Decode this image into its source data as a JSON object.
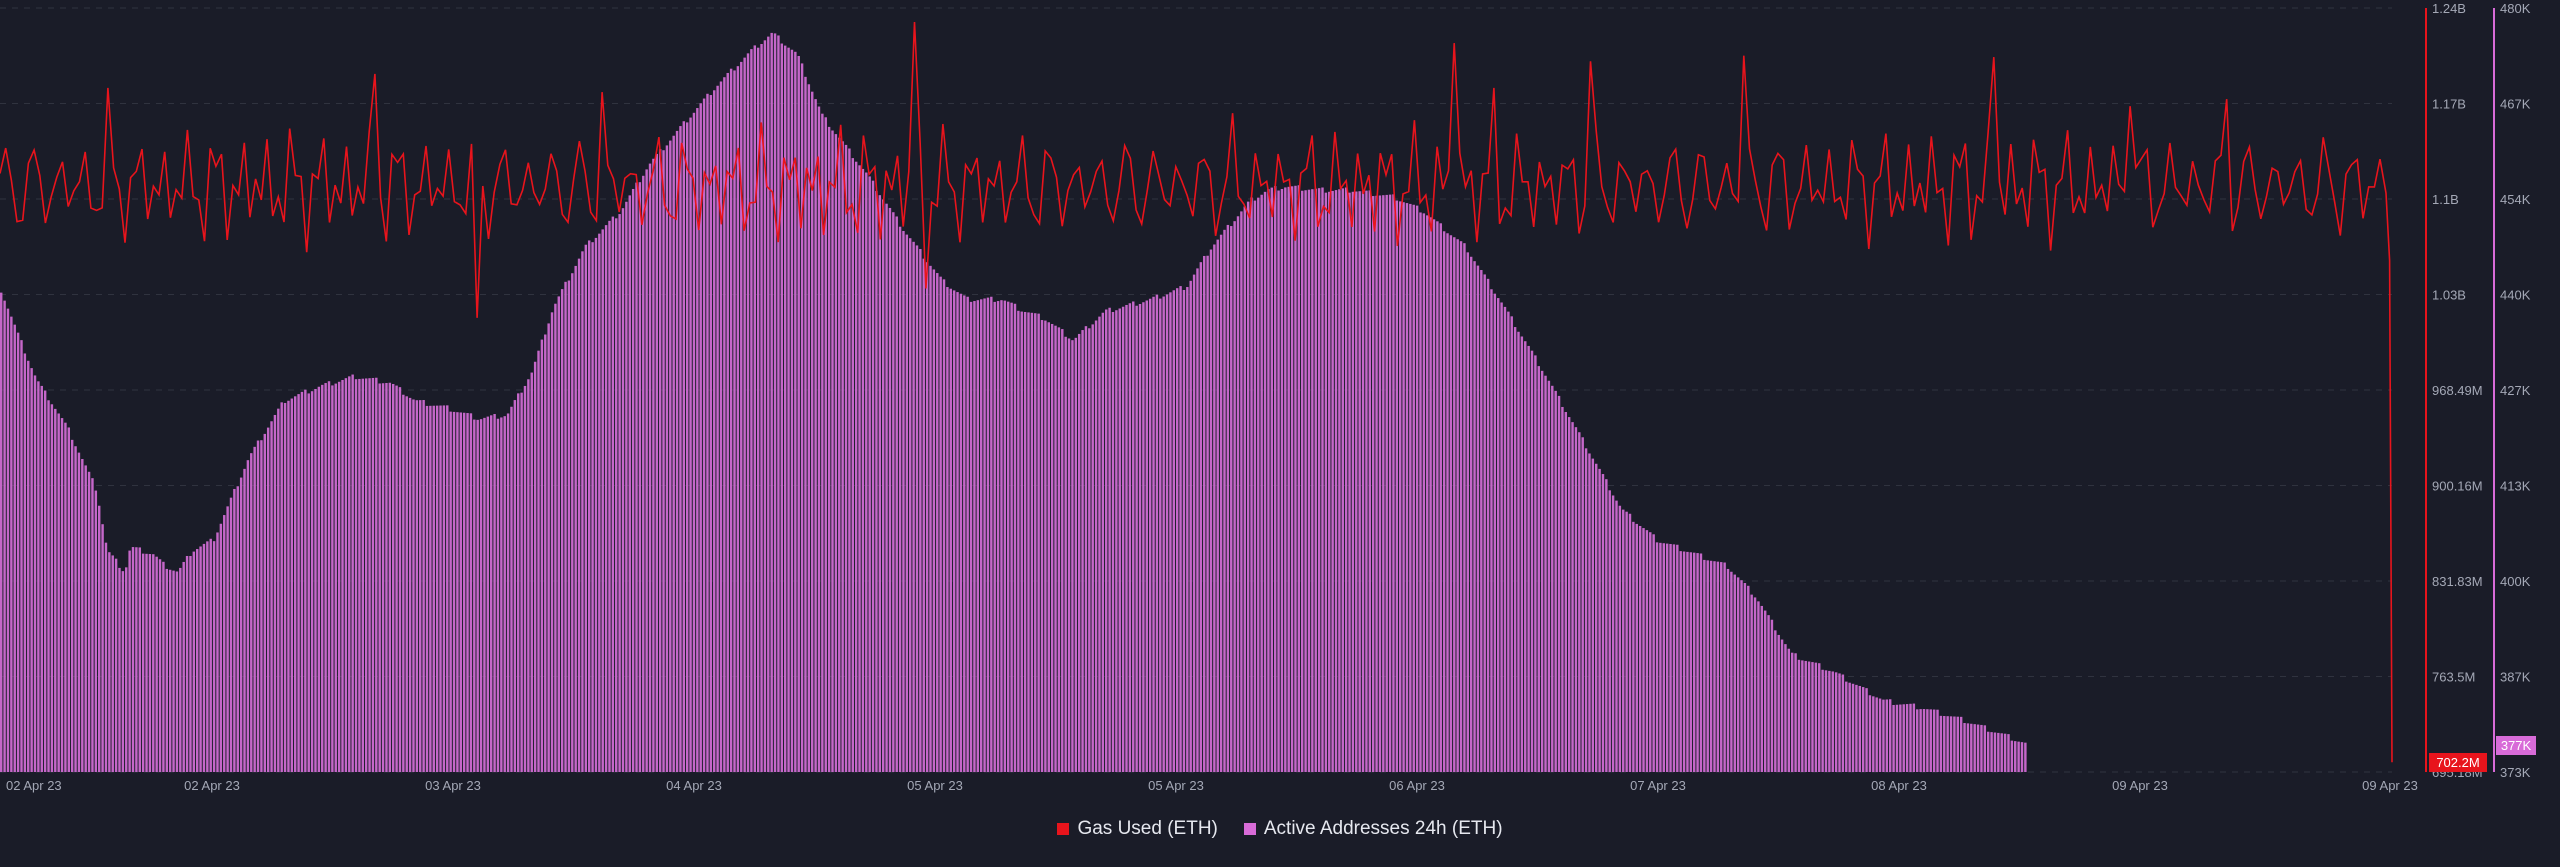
{
  "colors": {
    "background": "#1a1c28",
    "gas": "#e8141c",
    "active": "#d86bd8",
    "active_fill": "#c567c9",
    "grid": "#30333f",
    "tick": "#a4a8b6"
  },
  "legend": {
    "gas_label": "Gas Used (ETH)",
    "active_label": "Active Addresses 24h (ETH)"
  },
  "badges": {
    "gas_current": "702.2M",
    "active_current": "377K"
  },
  "chart_data": {
    "type": "line",
    "x_tick_labels": [
      "02 Apr 23",
      "02 Apr 23",
      "03 Apr 23",
      "04 Apr 23",
      "05 Apr 23",
      "05 Apr 23",
      "06 Apr 23",
      "07 Apr 23",
      "08 Apr 23",
      "09 Apr 23",
      "09 Apr 23"
    ],
    "x_range": [
      "2023-04-01T23:00",
      "2023-04-09T00:00"
    ],
    "y_left": {
      "label": "",
      "ticks": [
        "1.24B",
        "1.17B",
        "1.1B",
        "1.03B",
        "968.49M",
        "900.16M",
        "831.83M",
        "763.5M",
        "695.18M"
      ],
      "range": [
        695180000,
        1240000000
      ]
    },
    "y_right": {
      "label": "",
      "ticks": [
        "480K",
        "467K",
        "454K",
        "440K",
        "427K",
        "413K",
        "400K",
        "387K",
        "373K"
      ],
      "range": [
        373000,
        480000
      ]
    },
    "grid": true,
    "legend_position": "bottom-center",
    "series": [
      {
        "name": "Active Addresses 24h (ETH)",
        "type": "bar",
        "axis": "right",
        "knots": [
          [
            0.0,
            440.5
          ],
          [
            0.5,
            434
          ],
          [
            1.0,
            428
          ],
          [
            1.25,
            426
          ],
          [
            1.4,
            425
          ],
          [
            1.9,
            421
          ],
          [
            2.7,
            412.5
          ],
          [
            3.0,
            404
          ],
          [
            3.5,
            401
          ],
          [
            3.65,
            404.5
          ],
          [
            4.3,
            403.5
          ],
          [
            4.6,
            402
          ],
          [
            5.0,
            401
          ],
          [
            5.4,
            404
          ],
          [
            6.0,
            405.5
          ],
          [
            7.0,
            417
          ],
          [
            8.0,
            425
          ],
          [
            9.0,
            427
          ],
          [
            10.0,
            428.4
          ],
          [
            11.0,
            427.5
          ],
          [
            11.7,
            425
          ],
          [
            12.6,
            424
          ],
          [
            13.5,
            422.5
          ],
          [
            14.3,
            423
          ],
          [
            15.0,
            429
          ],
          [
            15.6,
            438
          ],
          [
            16.5,
            446.5
          ],
          [
            17.5,
            451.5
          ],
          [
            18.3,
            458
          ],
          [
            19.5,
            465
          ],
          [
            20.2,
            469
          ],
          [
            20.9,
            472.5
          ],
          [
            21.2,
            474
          ],
          [
            21.8,
            476.5
          ],
          [
            22.5,
            473.5
          ],
          [
            23.2,
            465
          ],
          [
            24.5,
            456.5
          ],
          [
            25.5,
            449
          ],
          [
            26.6,
            441.8
          ],
          [
            27.3,
            439.2
          ],
          [
            28.3,
            439.2
          ],
          [
            28.8,
            437.8
          ],
          [
            29.5,
            436.5
          ],
          [
            30.3,
            433.5
          ],
          [
            31.2,
            437.5
          ],
          [
            32.5,
            439.2
          ],
          [
            33.5,
            441
          ],
          [
            34.2,
            446.5
          ],
          [
            35.3,
            453
          ],
          [
            35.8,
            454.5
          ],
          [
            36.3,
            455
          ],
          [
            37.3,
            454.5
          ],
          [
            38.2,
            454.5
          ],
          [
            39.4,
            453.5
          ],
          [
            40.2,
            451.5
          ],
          [
            41.4,
            446.5
          ],
          [
            42.5,
            438
          ],
          [
            43.6,
            429
          ],
          [
            44.8,
            418.6
          ],
          [
            45.8,
            409.8
          ],
          [
            46.8,
            405.5
          ],
          [
            47.9,
            403.5
          ],
          [
            48.8,
            401.8
          ],
          [
            49.6,
            397.5
          ],
          [
            50.6,
            389.5
          ],
          [
            51.8,
            387
          ],
          [
            53.2,
            383
          ],
          [
            54.3,
            382
          ],
          [
            55.5,
            380.2
          ],
          [
            56.7,
            378
          ],
          [
            57.3,
            376.8
          ]
        ]
      },
      {
        "name": "Gas Used (ETH)",
        "type": "line",
        "axis": "left",
        "base": 1113000000,
        "spikes": [
          [
            3.9,
            1183000000
          ],
          [
            6.5,
            1063000000
          ],
          [
            13.5,
            1193000000
          ],
          [
            14.5,
            1046000000
          ],
          [
            16.5,
            1200000000
          ],
          [
            17.2,
            1019000000
          ],
          [
            21.8,
            1180000000
          ],
          [
            24.5,
            1190000000
          ],
          [
            30.5,
            1236000000
          ],
          [
            33.0,
            1230000000
          ],
          [
            33.5,
            1040000000
          ],
          [
            35.0,
            1185000000
          ],
          [
            40.5,
            1210000000
          ],
          [
            42.0,
            1093000000
          ],
          [
            44.5,
            1165000000
          ],
          [
            45.5,
            1053000000
          ],
          [
            52.5,
            1215000000
          ],
          [
            54.0,
            1183000000
          ],
          [
            57.5,
            1202000000
          ],
          [
            60.0,
            1180000000
          ],
          [
            63.0,
            1206000000
          ],
          [
            65.0,
            1170000000
          ],
          [
            72.0,
            1205000000
          ],
          [
            77.0,
            1170000000
          ],
          [
            80.5,
            1175000000
          ]
        ],
        "final_points": [
          1108000000,
          1060000000,
          702200000
        ]
      }
    ]
  }
}
